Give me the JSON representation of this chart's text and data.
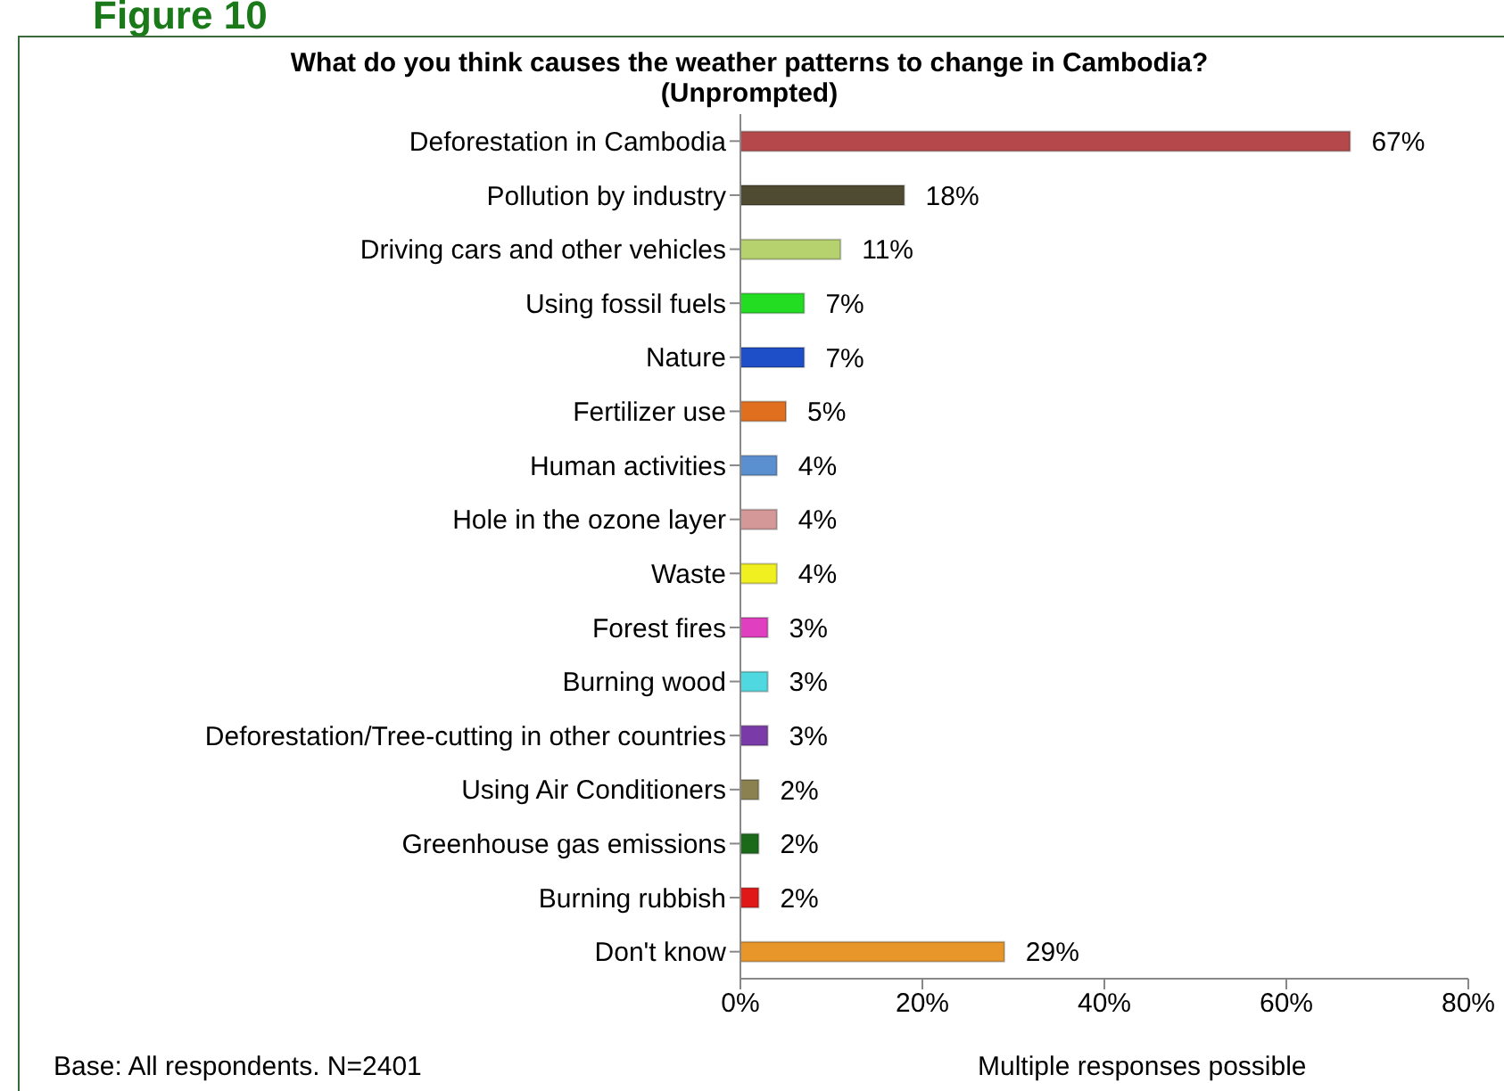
{
  "chart_data": {
    "type": "bar",
    "orientation": "horizontal",
    "title": "What do you think causes the weather patterns to change in Cambodia?  (Unprompted)",
    "categories": [
      "Deforestation in Cambodia",
      "Pollution by industry",
      "Driving cars and other vehicles",
      "Using fossil fuels",
      "Nature",
      "Fertilizer use",
      "Human activities",
      "Hole in the ozone layer",
      "Waste",
      "Forest fires",
      "Burning wood",
      "Deforestation/Tree-cutting in other countries",
      "Using Air Conditioners",
      "Greenhouse gas emissions",
      "Burning rubbish",
      "Don't know"
    ],
    "values": [
      67,
      18,
      11,
      7,
      7,
      5,
      4,
      4,
      4,
      3,
      3,
      3,
      2,
      2,
      2,
      29
    ],
    "value_labels": [
      "67%",
      "18%",
      "11%",
      "7%",
      "7%",
      "5%",
      "4%",
      "4%",
      "4%",
      "3%",
      "3%",
      "3%",
      "2%",
      "2%",
      "2%",
      "29%"
    ],
    "colors": [
      "#b5484b",
      "#4f4a32",
      "#b5d26e",
      "#22dd22",
      "#1f4fc8",
      "#e07020",
      "#5a8fd0",
      "#d49898",
      "#f0f020",
      "#e040c0",
      "#50d8e0",
      "#7a3aa8",
      "#8a8050",
      "#1a6a1a",
      "#e01818",
      "#e8962a"
    ],
    "xlim": [
      0,
      80
    ],
    "xticks": [
      {
        "value": 0,
        "label": "0%"
      },
      {
        "value": 20,
        "label": "20%"
      },
      {
        "value": 40,
        "label": "40%"
      },
      {
        "value": 60,
        "label": "60%"
      },
      {
        "value": 80,
        "label": "80%"
      }
    ],
    "annotations": [
      "Figure 10",
      "Base: All respondents. N=2401",
      "Multiple responses possible"
    ]
  }
}
